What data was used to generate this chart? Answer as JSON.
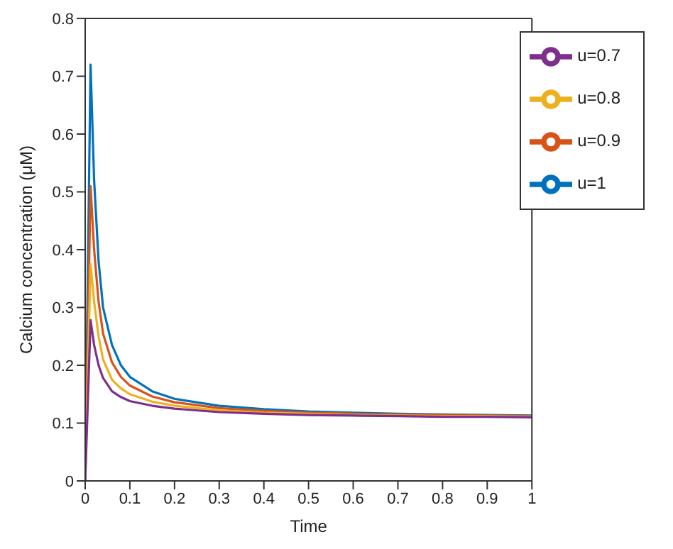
{
  "chart_data": {
    "type": "line",
    "xlabel": "Time",
    "ylabel": "Calcium concentration (μM)",
    "xlim": [
      0,
      1
    ],
    "xticks": [
      0,
      0.1,
      0.2,
      0.3,
      0.4,
      0.5,
      0.6,
      0.7,
      0.8,
      0.9,
      1
    ],
    "ylim": [
      0,
      0.8
    ],
    "yticks": [
      0,
      0.1,
      0.2,
      0.3,
      0.4,
      0.5,
      0.6,
      0.7,
      0.8
    ],
    "legend": "top right",
    "grid": false,
    "marker": "none",
    "line_style": "solid",
    "series": [
      {
        "name": "u=1",
        "color": "#0072bd",
        "x": [
          0,
          0.012,
          0.02,
          0.03,
          0.04,
          0.06,
          0.08,
          0.1,
          0.15,
          0.2,
          0.3,
          0.4,
          0.5,
          0.6,
          0.7,
          0.8,
          0.9,
          1
        ],
        "values": [
          0,
          0.72,
          0.52,
          0.38,
          0.3,
          0.235,
          0.2,
          0.18,
          0.155,
          0.142,
          0.13,
          0.124,
          0.12,
          0.118,
          0.116,
          0.115,
          0.114,
          0.113
        ]
      },
      {
        "name": "u=0.9",
        "color": "#d95319",
        "x": [
          0,
          0.012,
          0.02,
          0.03,
          0.04,
          0.06,
          0.08,
          0.1,
          0.15,
          0.2,
          0.3,
          0.4,
          0.5,
          0.6,
          0.7,
          0.8,
          0.9,
          1
        ],
        "values": [
          0,
          0.51,
          0.4,
          0.31,
          0.255,
          0.205,
          0.18,
          0.165,
          0.146,
          0.136,
          0.126,
          0.121,
          0.118,
          0.116,
          0.115,
          0.114,
          0.113,
          0.112
        ]
      },
      {
        "name": "u=0.8",
        "color": "#edb120",
        "x": [
          0,
          0.012,
          0.02,
          0.03,
          0.04,
          0.06,
          0.08,
          0.1,
          0.15,
          0.2,
          0.3,
          0.4,
          0.5,
          0.6,
          0.7,
          0.8,
          0.9,
          1
        ],
        "values": [
          0,
          0.375,
          0.31,
          0.25,
          0.21,
          0.175,
          0.16,
          0.15,
          0.137,
          0.13,
          0.122,
          0.118,
          0.116,
          0.114,
          0.113,
          0.112,
          0.112,
          0.111
        ]
      },
      {
        "name": "u=0.7",
        "color": "#7e2f8e",
        "x": [
          0,
          0.012,
          0.02,
          0.03,
          0.04,
          0.06,
          0.08,
          0.1,
          0.15,
          0.2,
          0.3,
          0.4,
          0.5,
          0.6,
          0.7,
          0.8,
          0.9,
          1
        ],
        "values": [
          0,
          0.278,
          0.235,
          0.2,
          0.178,
          0.155,
          0.145,
          0.138,
          0.13,
          0.125,
          0.119,
          0.116,
          0.114,
          0.113,
          0.112,
          0.111,
          0.111,
          0.11
        ]
      }
    ]
  }
}
